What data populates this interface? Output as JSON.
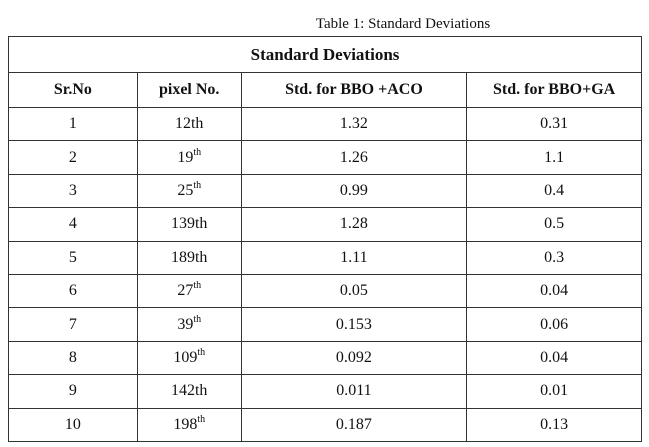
{
  "caption": "Table 1: Standard Deviations",
  "table": {
    "title": "Standard Deviations",
    "headers": [
      "Sr.No",
      "pixel No.",
      "Std. for BBO +ACO",
      "Std. for BBO+GA"
    ],
    "rows": [
      [
        "1",
        "12th",
        "1.32",
        "0.31"
      ],
      [
        "2",
        {
          "base": "19",
          "sup": "th"
        },
        "1.26",
        "1.1"
      ],
      [
        "3",
        {
          "base": "25",
          "sup": "th"
        },
        "0.99",
        "0.4"
      ],
      [
        "4",
        "139th",
        "1.28",
        "0.5"
      ],
      [
        "5",
        "189th",
        "1.11",
        "0.3"
      ],
      [
        "6",
        {
          "base": "27",
          "sup": "th"
        },
        "0.05",
        "0.04"
      ],
      [
        "7",
        {
          "base": "39",
          "sup": "th"
        },
        "0.153",
        "0.06"
      ],
      [
        "8",
        {
          "base": "109",
          "sup": "th"
        },
        "0.092",
        "0.04"
      ],
      [
        "9",
        "142th",
        "0.011",
        "0.01"
      ],
      [
        "10",
        {
          "base": "198",
          "sup": "th"
        },
        "0.187",
        "0.13"
      ]
    ]
  }
}
